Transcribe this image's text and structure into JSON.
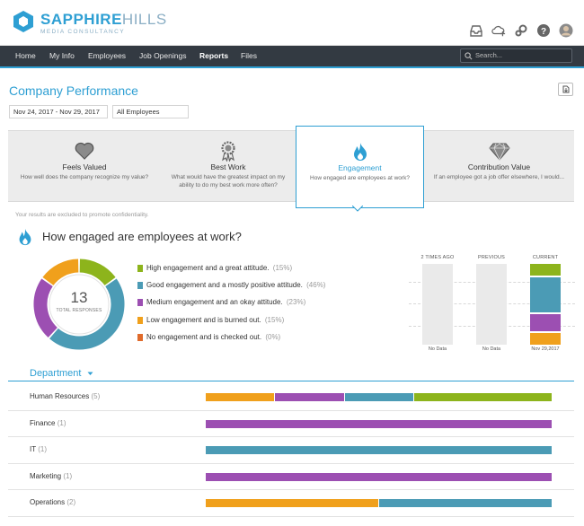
{
  "brand": {
    "name_bold": "SAPPHIRE",
    "name_rest": "HILLS",
    "sub": "MEDIA CONSULTANCY"
  },
  "header_icons": [
    "inbox-icon",
    "cloud-upload-icon",
    "settings-icon",
    "help-icon",
    "avatar"
  ],
  "nav": {
    "items": [
      {
        "label": "Home"
      },
      {
        "label": "My Info"
      },
      {
        "label": "Employees"
      },
      {
        "label": "Job Openings"
      },
      {
        "label": "Reports",
        "active": true
      },
      {
        "label": "Files"
      }
    ],
    "search_placeholder": "Search..."
  },
  "page": {
    "title": "Company Performance"
  },
  "filters": {
    "date_range": "Nov 24, 2017 - Nov 29, 2017",
    "group": "All Employees"
  },
  "tabs": [
    {
      "title": "Feels Valued",
      "desc": "How well does the company recognize my value?",
      "icon": "heart-icon"
    },
    {
      "title": "Best Work",
      "desc": "What would have the greatest impact on my ability to do my best work more often?",
      "icon": "award-icon"
    },
    {
      "title": "Engagement",
      "desc": "How engaged are employees at work?",
      "icon": "flame-icon",
      "active": true
    },
    {
      "title": "Contribution Value",
      "desc": "If an employee got a job offer elsewhere, I would...",
      "icon": "diamond-icon"
    }
  ],
  "note": "Your results are excluded to promote confidentiality.",
  "question": "How engaged are employees at work?",
  "colors": {
    "accent": "#2e9fd3",
    "high": "#8db41c",
    "good": "#4b9bb5",
    "medium": "#9c4fb2",
    "low": "#f0a01c",
    "none": "#e06b2b"
  },
  "donut": {
    "total": "13",
    "total_label": "TOTAL RESPONSES"
  },
  "legend": [
    {
      "key": "high",
      "label": "High engagement and a great attitude.",
      "pct": "(15%)",
      "value": 15
    },
    {
      "key": "good",
      "label": "Good engagement and a mostly positive attitude.",
      "pct": "(46%)",
      "value": 46
    },
    {
      "key": "medium",
      "label": "Medium engagement and an okay attitude.",
      "pct": "(23%)",
      "value": 23
    },
    {
      "key": "low",
      "label": "Low engagement and is burned out.",
      "pct": "(15%)",
      "value": 15
    },
    {
      "key": "none",
      "label": "No engagement and is checked out.",
      "pct": "(0%)",
      "value": 0
    }
  ],
  "history": {
    "columns": [
      {
        "head": "2 TIMES AGO",
        "foot": "No Data"
      },
      {
        "head": "PREVIOUS",
        "foot": "No Data"
      },
      {
        "head": "CURRENT",
        "foot": "Nov 29,2017"
      }
    ]
  },
  "department": {
    "header": "Department",
    "rows": [
      {
        "name": "Human Resources",
        "count": "(5)",
        "segments": [
          {
            "key": "low",
            "value": 20
          },
          {
            "key": "medium",
            "value": 20
          },
          {
            "key": "good",
            "value": 20
          },
          {
            "key": "high",
            "value": 40
          }
        ]
      },
      {
        "name": "Finance",
        "count": "(1)",
        "segments": [
          {
            "key": "medium",
            "value": 100
          }
        ]
      },
      {
        "name": "IT",
        "count": "(1)",
        "segments": [
          {
            "key": "good",
            "value": 100
          }
        ]
      },
      {
        "name": "Marketing",
        "count": "(1)",
        "segments": [
          {
            "key": "medium",
            "value": 100
          }
        ]
      },
      {
        "name": "Operations",
        "count": "(2)",
        "segments": [
          {
            "key": "low",
            "value": 50
          },
          {
            "key": "good",
            "value": 50
          }
        ]
      }
    ]
  }
}
